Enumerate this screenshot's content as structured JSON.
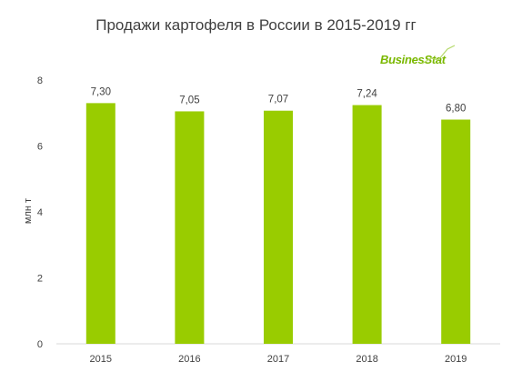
{
  "chart_data": {
    "type": "bar",
    "title": "Продажи картофеля в России в 2015-2019 гг",
    "xlabel": "",
    "ylabel": "млн т",
    "categories": [
      "2015",
      "2016",
      "2017",
      "2018",
      "2019"
    ],
    "values": [
      7.3,
      7.05,
      7.07,
      7.24,
      6.8
    ],
    "data_labels": [
      "7,30",
      "7,05",
      "7,07",
      "7,24",
      "6,80"
    ],
    "ylim": [
      0,
      8
    ],
    "yticks": [
      "0",
      "2",
      "4",
      "6",
      "8"
    ],
    "grid": false,
    "bar_color": "#99cc00"
  },
  "logo": {
    "text": "BusinesStat",
    "color": "#7ab800"
  }
}
